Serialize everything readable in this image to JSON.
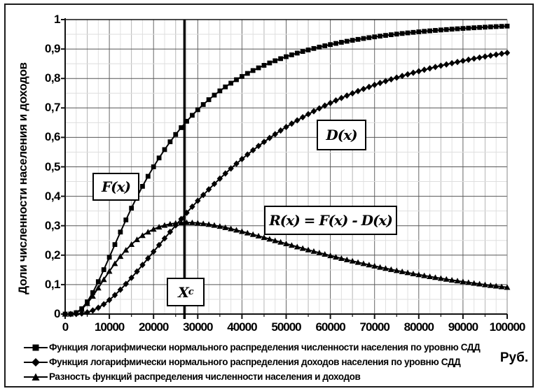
{
  "figure": {
    "y_axis_title": "Доли численности населения и доходов",
    "x_unit_label": "Руб.",
    "y_tick_labels": [
      "0",
      "0,1",
      "0,2",
      "0,3",
      "0,4",
      "0,5",
      "0,6",
      "0,7",
      "0,8",
      "0,9",
      "1"
    ],
    "x_tick_labels": [
      "0",
      "10000",
      "20000",
      "30000",
      "40000",
      "50000",
      "60000",
      "70000",
      "80000",
      "90000",
      "100000"
    ]
  },
  "annotations": {
    "f_label": "F(x)",
    "d_label": "D(x)",
    "r_label": "R(x) = F(x) - D(x)",
    "xc_label_main": "X",
    "xc_label_sub": "c"
  },
  "legend": {
    "items": [
      {
        "marker": "square",
        "label": "Функция логарифмически нормального распределения численности населения по уровню СДД"
      },
      {
        "marker": "diamond",
        "label": "Функция логарифмически нормального распределения доходов населения по уровню СДД"
      },
      {
        "marker": "triangle",
        "label": "Разность функций распределения численности населения и доходов"
      }
    ]
  },
  "chart_data": {
    "type": "line",
    "title": "",
    "xlabel": "Руб.",
    "ylabel": "Доли численности населения и доходов",
    "xlim": [
      0,
      100000
    ],
    "ylim": [
      0,
      1
    ],
    "x_major_step": 10000,
    "x_minor_step": 5000,
    "y_major_step": 0.1,
    "y_minor_step": 0.05,
    "grid": "on",
    "legend_position": "bottom",
    "marker_step_x": 1250,
    "line_color": "#000000",
    "vline": {
      "x": 27000,
      "label": "Xc"
    },
    "x_sample": [
      0,
      5000,
      10000,
      15000,
      20000,
      25000,
      30000,
      35000,
      40000,
      45000,
      50000,
      55000,
      60000,
      65000,
      70000,
      75000,
      80000,
      85000,
      90000,
      95000,
      100000
    ],
    "series": [
      {
        "name": "F(x)",
        "fn": "F",
        "marker": "square",
        "description": "Функция логарифмически нормального распределения численности населения по уровню СДД",
        "model": {
          "type": "lognormal_cdf",
          "median": 20000,
          "sigma": 0.8
        },
        "values": [
          0,
          0.042,
          0.193,
          0.359,
          0.5,
          0.61,
          0.694,
          0.758,
          0.807,
          0.845,
          0.874,
          0.897,
          0.915,
          0.93,
          0.941,
          0.951,
          0.958,
          0.965,
          0.97,
          0.974,
          0.978
        ]
      },
      {
        "name": "D(x)",
        "fn": "D",
        "marker": "diamond",
        "description": "Функция логарифмически нормального распределения доходов населения по уровню СДД",
        "model": {
          "type": "lognormal_income_cdf",
          "median": 20000,
          "sigma": 0.8
        },
        "values": [
          0,
          0.006,
          0.048,
          0.123,
          0.212,
          0.301,
          0.385,
          0.46,
          0.526,
          0.585,
          0.635,
          0.679,
          0.717,
          0.75,
          0.778,
          0.803,
          0.825,
          0.843,
          0.86,
          0.875,
          0.887
        ]
      },
      {
        "name": "R(x) = F(x) - D(x)",
        "fn": "R",
        "marker": "triangle",
        "description": "Разность функций распределения численности населения и доходов",
        "model": {
          "type": "difference",
          "of": [
            "F",
            "D"
          ]
        },
        "values": [
          0,
          0.036,
          0.145,
          0.236,
          0.288,
          0.309,
          0.309,
          0.298,
          0.281,
          0.26,
          0.239,
          0.218,
          0.198,
          0.18,
          0.163,
          0.148,
          0.134,
          0.121,
          0.11,
          0.099,
          0.091
        ]
      }
    ]
  }
}
